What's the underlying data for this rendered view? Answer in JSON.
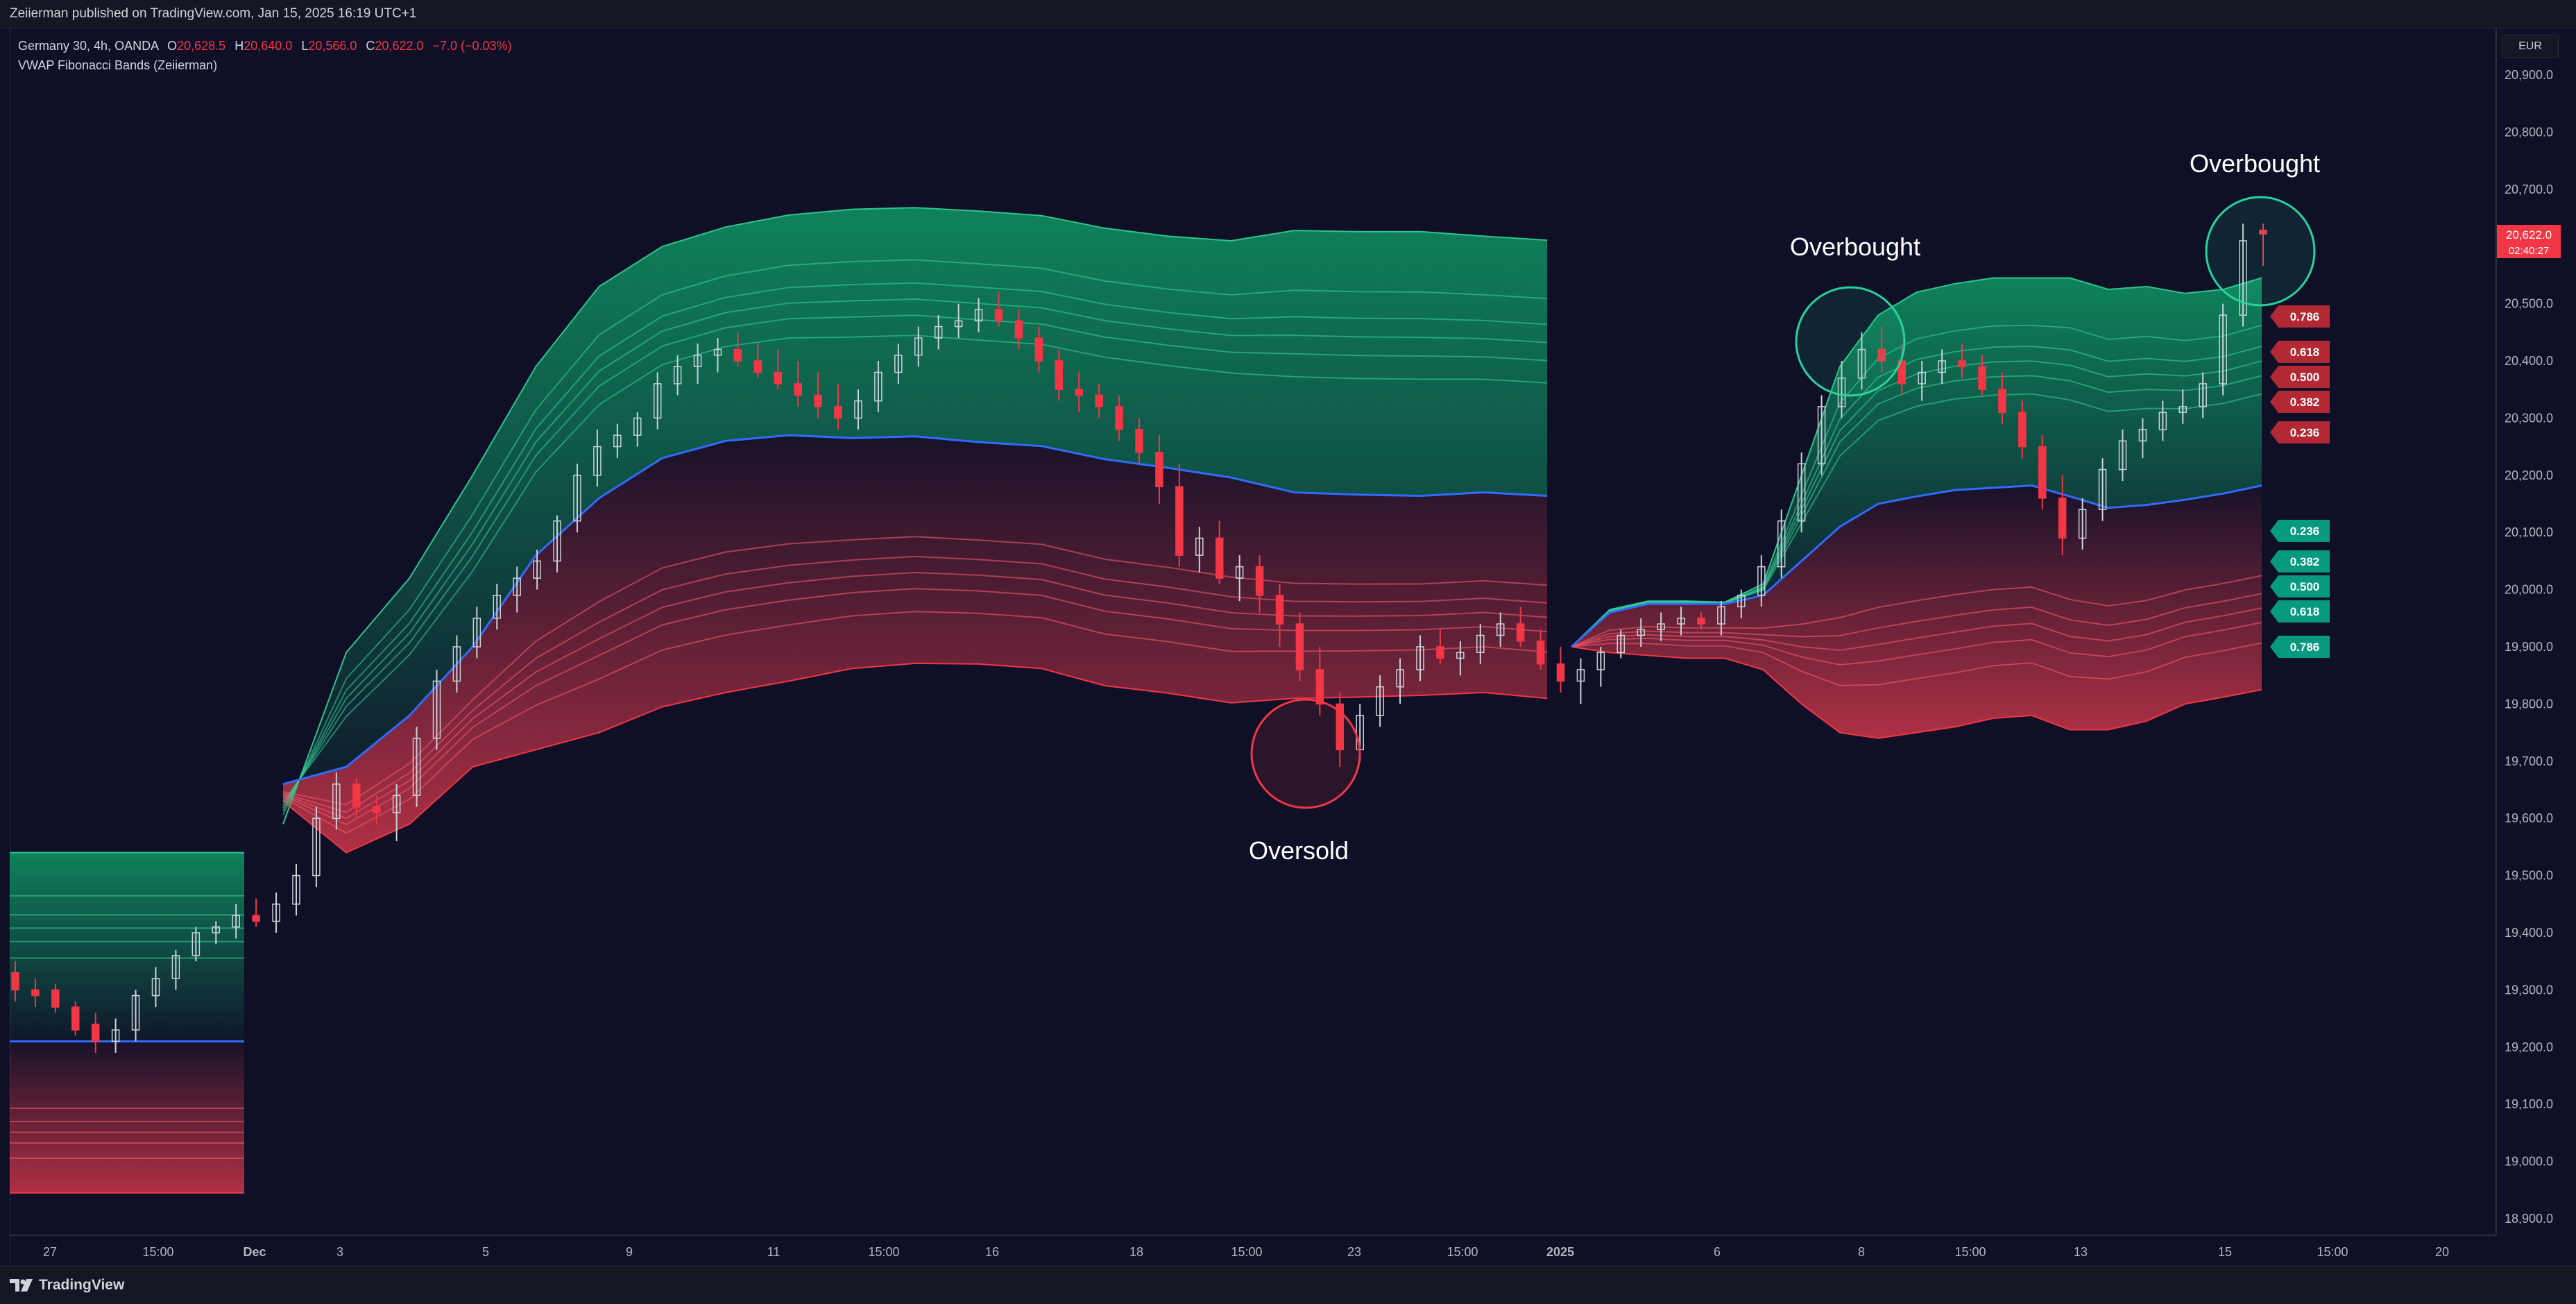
{
  "header": {
    "published_text": "Zeiierman published on TradingView.com, Jan 15, 2025 16:19 UTC+1"
  },
  "legend": {
    "symbol": "Germany 30, 4h, OANDA",
    "open_label": "O",
    "open_value": "20,628.5",
    "high_label": "H",
    "high_value": "20,640.0",
    "low_label": "L",
    "low_value": "20,566.0",
    "close_label": "C",
    "close_value": "20,622.0",
    "change": "−7.0 (−0.03%)",
    "indicator": "VWAP Fibonacci Bands (Zeiierman)"
  },
  "currency": "EUR",
  "price_axis": {
    "ticks": [
      "20,900.0",
      "20,800.0",
      "20,700.0",
      "20,600.0",
      "20,500.0",
      "20,400.0",
      "20,300.0",
      "20,200.0",
      "20,100.0",
      "20,000.0",
      "19,900.0",
      "19,800.0",
      "19,700.0",
      "19,600.0",
      "19,500.0",
      "19,400.0",
      "19,300.0",
      "19,200.0",
      "19,100.0",
      "19,000.0",
      "18,900.0"
    ],
    "last_price": "20,622.0",
    "countdown": "02:40:27"
  },
  "time_axis": {
    "ticks": [
      "27",
      "15:00",
      "Dec",
      "3",
      "5",
      "9",
      "11",
      "15:00",
      "16",
      "18",
      "15:00",
      "23",
      "15:00",
      "2025",
      "6",
      "8",
      "15:00",
      "13",
      "15",
      "15:00",
      "20"
    ]
  },
  "annotations": {
    "overbought_1": "Overbought",
    "overbought_2": "Overbought",
    "oversold": "Oversold"
  },
  "fib_labels_upper": [
    "0.786",
    "0.618",
    "0.500",
    "0.382",
    "0.236"
  ],
  "fib_labels_lower": [
    "0.236",
    "0.382",
    "0.500",
    "0.618",
    "0.786"
  ],
  "colors": {
    "background": "#0f1027",
    "bull_band": "#0f9d68",
    "bear_band": "#e03a4e",
    "vwap": "#2f6bff",
    "candle_up": "#26a69a",
    "candle_down": "#f23645",
    "tag_red": "#b22833",
    "tag_green": "#089981"
  },
  "chart_data": {
    "type": "candlestick",
    "title": "Germany 30, 4h, OANDA",
    "indicator": "VWAP Fibonacci Bands (Zeiierman)",
    "ylim": [
      18880,
      20960
    ],
    "x_range": [
      "27",
      "20"
    ],
    "last_close": 20622.0,
    "fib_levels": [
      0.236,
      0.382,
      0.5,
      0.618,
      0.786
    ],
    "segments": [
      {
        "session": "Nov 27 – Nov 29",
        "vwap": [
          19210,
          19210
        ],
        "upper_outer": [
          19540,
          19540
        ],
        "lower_outer": [
          18945,
          18945
        ]
      },
      {
        "session": "Dec 2 – Dec 30",
        "vwap": [
          19660,
          19690,
          19780,
          19900,
          20060,
          20160,
          20230,
          20260,
          20270,
          20265,
          20268,
          20258,
          20251,
          20228,
          20213,
          20196,
          20170,
          20166,
          20164,
          20170,
          20164
        ],
        "upper_outer": [
          19590,
          19890,
          20020,
          20200,
          20390,
          20530,
          20600,
          20634,
          20655,
          20665,
          20668,
          20662,
          20654,
          20632,
          20618,
          20610,
          20628,
          20626,
          20626,
          20618,
          20611
        ],
        "lower_outer": [
          19630,
          19540,
          19590,
          19690,
          19720,
          19750,
          19795,
          19820,
          19840,
          19862,
          19871,
          19870,
          19862,
          19832,
          19819,
          19802,
          19810,
          19812,
          19815,
          19820,
          19810
        ]
      },
      {
        "session": "Jan 2 – Jan 15",
        "vwap": [
          19900,
          19960,
          19975,
          19975,
          19975,
          19990,
          20050,
          20110,
          20150,
          20163,
          20174,
          20178,
          20182,
          20163,
          20143,
          20148,
          20157,
          20168,
          20182
        ],
        "upper_outer": [
          19900,
          19965,
          19980,
          19980,
          19978,
          20010,
          20200,
          20390,
          20480,
          20520,
          20535,
          20545,
          20545,
          20545,
          20525,
          20530,
          20518,
          20525,
          20545
        ],
        "lower_outer": [
          19900,
          19890,
          19885,
          19880,
          19880,
          19860,
          19800,
          19750,
          19740,
          19750,
          19760,
          19775,
          19780,
          19755,
          19755,
          19770,
          19800,
          19812,
          19825
        ]
      }
    ],
    "candles_ohlc": [
      [
        19330,
        19350,
        19280,
        19300
      ],
      [
        19300,
        19320,
        19270,
        19290
      ],
      [
        19300,
        19310,
        19260,
        19270
      ],
      [
        19270,
        19280,
        19220,
        19230
      ],
      [
        19240,
        19260,
        19190,
        19210
      ],
      [
        19210,
        19250,
        19190,
        19230
      ],
      [
        19230,
        19300,
        19210,
        19290
      ],
      [
        19290,
        19340,
        19270,
        19320
      ],
      [
        19320,
        19370,
        19300,
        19360
      ],
      [
        19360,
        19410,
        19350,
        19400
      ],
      [
        19400,
        19420,
        19380,
        19410
      ],
      [
        19410,
        19450,
        19390,
        19430
      ],
      [
        19430,
        19460,
        19410,
        19420
      ],
      [
        19420,
        19470,
        19400,
        19450
      ],
      [
        19450,
        19520,
        19430,
        19500
      ],
      [
        19500,
        19620,
        19480,
        19600
      ],
      [
        19600,
        19680,
        19580,
        19660
      ],
      [
        19660,
        19670,
        19600,
        19620
      ],
      [
        19620,
        19640,
        19590,
        19610
      ],
      [
        19610,
        19660,
        19560,
        19640
      ],
      [
        19640,
        19760,
        19620,
        19740
      ],
      [
        19740,
        19860,
        19720,
        19840
      ],
      [
        19840,
        19920,
        19820,
        19900
      ],
      [
        19900,
        19970,
        19880,
        19950
      ],
      [
        19950,
        20010,
        19930,
        19990
      ],
      [
        19990,
        20040,
        19960,
        20020
      ],
      [
        20020,
        20070,
        20000,
        20050
      ],
      [
        20050,
        20130,
        20030,
        20120
      ],
      [
        20120,
        20220,
        20100,
        20200
      ],
      [
        20200,
        20280,
        20180,
        20250
      ],
      [
        20250,
        20290,
        20230,
        20270
      ],
      [
        20270,
        20310,
        20250,
        20300
      ],
      [
        20300,
        20380,
        20280,
        20360
      ],
      [
        20360,
        20410,
        20340,
        20390
      ],
      [
        20390,
        20430,
        20360,
        20410
      ],
      [
        20410,
        20440,
        20380,
        20420
      ],
      [
        20420,
        20450,
        20390,
        20400
      ],
      [
        20400,
        20430,
        20370,
        20380
      ],
      [
        20380,
        20420,
        20350,
        20360
      ],
      [
        20360,
        20400,
        20320,
        20340
      ],
      [
        20340,
        20380,
        20300,
        20320
      ],
      [
        20320,
        20360,
        20280,
        20300
      ],
      [
        20300,
        20350,
        20280,
        20330
      ],
      [
        20330,
        20400,
        20310,
        20380
      ],
      [
        20380,
        20430,
        20360,
        20410
      ],
      [
        20410,
        20460,
        20390,
        20440
      ],
      [
        20440,
        20480,
        20420,
        20460
      ],
      [
        20460,
        20500,
        20440,
        20470
      ],
      [
        20470,
        20510,
        20450,
        20490
      ],
      [
        20490,
        20520,
        20460,
        20470
      ],
      [
        20470,
        20490,
        20420,
        20440
      ],
      [
        20440,
        20460,
        20380,
        20400
      ],
      [
        20400,
        20420,
        20330,
        20350
      ],
      [
        20350,
        20380,
        20310,
        20340
      ],
      [
        20340,
        20360,
        20300,
        20320
      ],
      [
        20320,
        20340,
        20260,
        20280
      ],
      [
        20280,
        20300,
        20220,
        20240
      ],
      [
        20240,
        20270,
        20150,
        20180
      ],
      [
        20180,
        20220,
        20040,
        20060
      ],
      [
        20060,
        20110,
        20030,
        20090
      ],
      [
        20090,
        20120,
        20010,
        20020
      ],
      [
        20020,
        20060,
        19980,
        20040
      ],
      [
        20040,
        20060,
        19960,
        19990
      ],
      [
        19990,
        20010,
        19900,
        19940
      ],
      [
        19940,
        19960,
        19840,
        19860
      ],
      [
        19860,
        19900,
        19780,
        19800
      ],
      [
        19800,
        19820,
        19690,
        19720
      ],
      [
        19720,
        19800,
        19700,
        19780
      ],
      [
        19780,
        19850,
        19760,
        19830
      ],
      [
        19830,
        19880,
        19800,
        19860
      ],
      [
        19860,
        19920,
        19840,
        19900
      ],
      [
        19900,
        19930,
        19870,
        19880
      ],
      [
        19880,
        19910,
        19850,
        19890
      ],
      [
        19890,
        19940,
        19870,
        19920
      ],
      [
        19920,
        19960,
        19900,
        19940
      ],
      [
        19940,
        19970,
        19900,
        19910
      ],
      [
        19910,
        19930,
        19860,
        19870
      ],
      [
        19870,
        19900,
        19820,
        19840
      ],
      [
        19840,
        19880,
        19800,
        19860
      ],
      [
        19860,
        19900,
        19830,
        19890
      ],
      [
        19890,
        19930,
        19880,
        19920
      ],
      [
        19920,
        19950,
        19900,
        19930
      ],
      [
        19930,
        19960,
        19910,
        19940
      ],
      [
        19940,
        19970,
        19920,
        19950
      ],
      [
        19950,
        19960,
        19930,
        19940
      ],
      [
        19940,
        19980,
        19920,
        19970
      ],
      [
        19970,
        20000,
        19950,
        19990
      ],
      [
        19990,
        20060,
        19970,
        20040
      ],
      [
        20040,
        20140,
        20020,
        20120
      ],
      [
        20120,
        20240,
        20100,
        20220
      ],
      [
        20220,
        20340,
        20200,
        20320
      ],
      [
        20320,
        20400,
        20300,
        20370
      ],
      [
        20370,
        20450,
        20350,
        20420
      ],
      [
        20420,
        20460,
        20380,
        20400
      ],
      [
        20400,
        20430,
        20340,
        20360
      ],
      [
        20360,
        20400,
        20330,
        20380
      ],
      [
        20380,
        20420,
        20360,
        20400
      ],
      [
        20400,
        20430,
        20370,
        20390
      ],
      [
        20390,
        20410,
        20340,
        20350
      ],
      [
        20350,
        20380,
        20290,
        20310
      ],
      [
        20310,
        20330,
        20230,
        20250
      ],
      [
        20250,
        20270,
        20140,
        20160
      ],
      [
        20160,
        20200,
        20060,
        20090
      ],
      [
        20090,
        20160,
        20070,
        20140
      ],
      [
        20140,
        20230,
        20120,
        20210
      ],
      [
        20210,
        20280,
        20190,
        20260
      ],
      [
        20260,
        20300,
        20230,
        20280
      ],
      [
        20280,
        20330,
        20260,
        20310
      ],
      [
        20310,
        20350,
        20290,
        20320
      ],
      [
        20320,
        20380,
        20300,
        20360
      ],
      [
        20360,
        20500,
        20340,
        20480
      ],
      [
        20480,
        20640,
        20460,
        20610
      ],
      [
        20628.5,
        20640,
        20566,
        20622
      ]
    ]
  }
}
